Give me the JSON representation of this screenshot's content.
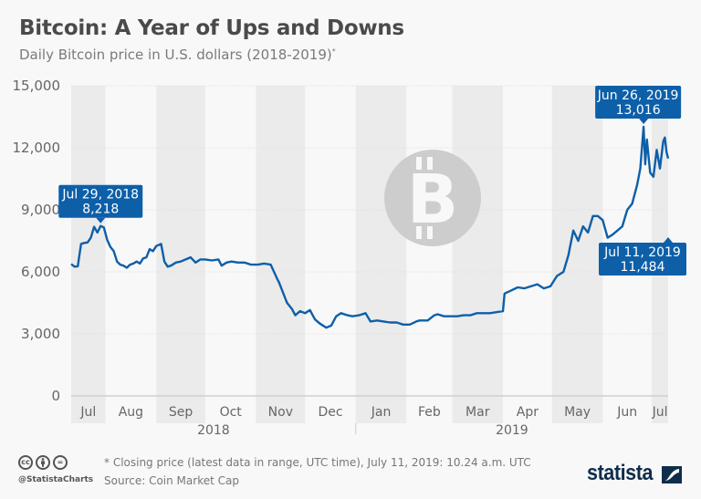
{
  "header": {
    "title": "Bitcoin: A Year of Ups and Downs",
    "subtitle": "Daily Bitcoin price in U.S. dollars (2018-2019)",
    "subtitle_mark": "*"
  },
  "chart_data": {
    "type": "line",
    "title": "Bitcoin: A Year of Ups and Downs",
    "subtitle": "Daily Bitcoin price in U.S. dollars (2018-2019)*",
    "xlabel": "",
    "ylabel": "",
    "ylim": [
      0,
      15000
    ],
    "yticks": [
      0,
      3000,
      6000,
      9000,
      12000,
      15000
    ],
    "ytick_labels": [
      "0",
      "3,000",
      "6,000",
      "9,000",
      "12,000",
      "15,000"
    ],
    "grid": true,
    "x_range": [
      "2018-07-11",
      "2019-07-11"
    ],
    "month_labels": [
      {
        "label": "Jul",
        "start": "2018-07-11",
        "end": "2018-08-01",
        "shaded": true
      },
      {
        "label": "Aug",
        "start": "2018-08-01",
        "end": "2018-09-01",
        "shaded": false
      },
      {
        "label": "Sep",
        "start": "2018-09-01",
        "end": "2018-10-01",
        "shaded": true
      },
      {
        "label": "Oct",
        "start": "2018-10-01",
        "end": "2018-11-01",
        "shaded": false
      },
      {
        "label": "Nov",
        "start": "2018-11-01",
        "end": "2018-12-01",
        "shaded": true
      },
      {
        "label": "Dec",
        "start": "2018-12-01",
        "end": "2019-01-01",
        "shaded": false
      },
      {
        "label": "Jan",
        "start": "2019-01-01",
        "end": "2019-02-01",
        "shaded": true
      },
      {
        "label": "Feb",
        "start": "2019-02-01",
        "end": "2019-03-01",
        "shaded": false
      },
      {
        "label": "Mar",
        "start": "2019-03-01",
        "end": "2019-04-01",
        "shaded": true
      },
      {
        "label": "Apr",
        "start": "2019-04-01",
        "end": "2019-05-01",
        "shaded": false
      },
      {
        "label": "May",
        "start": "2019-05-01",
        "end": "2019-06-01",
        "shaded": true
      },
      {
        "label": "Jun",
        "start": "2019-06-01",
        "end": "2019-07-01",
        "shaded": false
      },
      {
        "label": "Jul",
        "start": "2019-07-01",
        "end": "2019-07-11",
        "shaded": true
      }
    ],
    "year_labels": [
      {
        "label": "2018",
        "start": "2018-07-11",
        "end": "2019-01-01"
      },
      {
        "label": "2019",
        "start": "2019-01-01",
        "end": "2019-07-11"
      }
    ],
    "series": [
      {
        "name": "Bitcoin price (USD)",
        "color": "#0d5fa8",
        "x": [
          "2018-07-11",
          "2018-07-13",
          "2018-07-15",
          "2018-07-17",
          "2018-07-19",
          "2018-07-21",
          "2018-07-23",
          "2018-07-25",
          "2018-07-27",
          "2018-07-29",
          "2018-07-31",
          "2018-08-02",
          "2018-08-04",
          "2018-08-06",
          "2018-08-08",
          "2018-08-10",
          "2018-08-12",
          "2018-08-14",
          "2018-08-16",
          "2018-08-18",
          "2018-08-20",
          "2018-08-22",
          "2018-08-24",
          "2018-08-26",
          "2018-08-28",
          "2018-08-30",
          "2018-09-01",
          "2018-09-04",
          "2018-09-06",
          "2018-09-08",
          "2018-09-10",
          "2018-09-13",
          "2018-09-16",
          "2018-09-19",
          "2018-09-22",
          "2018-09-25",
          "2018-09-28",
          "2018-10-01",
          "2018-10-05",
          "2018-10-09",
          "2018-10-11",
          "2018-10-14",
          "2018-10-17",
          "2018-10-21",
          "2018-10-25",
          "2018-10-29",
          "2018-11-02",
          "2018-11-06",
          "2018-11-10",
          "2018-11-14",
          "2018-11-15",
          "2018-11-19",
          "2018-11-20",
          "2018-11-23",
          "2018-11-25",
          "2018-11-28",
          "2018-12-01",
          "2018-12-04",
          "2018-12-07",
          "2018-12-10",
          "2018-12-14",
          "2018-12-17",
          "2018-12-20",
          "2018-12-23",
          "2018-12-27",
          "2018-12-30",
          "2019-01-03",
          "2019-01-07",
          "2019-01-10",
          "2019-01-14",
          "2019-01-18",
          "2019-01-22",
          "2019-01-26",
          "2019-01-30",
          "2019-02-03",
          "2019-02-07",
          "2019-02-09",
          "2019-02-14",
          "2019-02-18",
          "2019-02-20",
          "2019-02-24",
          "2019-02-28",
          "2019-03-04",
          "2019-03-08",
          "2019-03-12",
          "2019-03-16",
          "2019-03-20",
          "2019-03-24",
          "2019-03-28",
          "2019-04-01",
          "2019-04-02",
          "2019-04-06",
          "2019-04-10",
          "2019-04-14",
          "2019-04-18",
          "2019-04-22",
          "2019-04-26",
          "2019-04-30",
          "2019-05-04",
          "2019-05-08",
          "2019-05-11",
          "2019-05-14",
          "2019-05-17",
          "2019-05-20",
          "2019-05-23",
          "2019-05-26",
          "2019-05-29",
          "2019-06-01",
          "2019-06-04",
          "2019-06-07",
          "2019-06-10",
          "2019-06-13",
          "2019-06-16",
          "2019-06-19",
          "2019-06-22",
          "2019-06-24",
          "2019-06-26",
          "2019-06-27",
          "2019-06-28",
          "2019-06-30",
          "2019-07-02",
          "2019-07-04",
          "2019-07-06",
          "2019-07-08",
          "2019-07-09",
          "2019-07-10",
          "2019-07-11"
        ],
        "y": [
          6380,
          6250,
          6270,
          7350,
          7400,
          7420,
          7650,
          8180,
          7900,
          8218,
          8150,
          7550,
          7200,
          7000,
          6500,
          6350,
          6300,
          6200,
          6350,
          6400,
          6500,
          6400,
          6650,
          6700,
          7100,
          7000,
          7250,
          7350,
          6500,
          6250,
          6300,
          6450,
          6500,
          6600,
          6700,
          6450,
          6600,
          6600,
          6550,
          6600,
          6300,
          6450,
          6500,
          6450,
          6450,
          6350,
          6350,
          6400,
          6350,
          5650,
          5500,
          4700,
          4500,
          4200,
          3900,
          4100,
          4000,
          4150,
          3700,
          3500,
          3300,
          3400,
          3850,
          4000,
          3900,
          3850,
          3900,
          4000,
          3600,
          3650,
          3600,
          3550,
          3550,
          3450,
          3450,
          3600,
          3650,
          3650,
          3900,
          3950,
          3850,
          3850,
          3850,
          3900,
          3900,
          4000,
          4000,
          4000,
          4050,
          4100,
          4950,
          5100,
          5250,
          5200,
          5300,
          5400,
          5200,
          5300,
          5800,
          6000,
          6800,
          8000,
          7500,
          8200,
          7900,
          8700,
          8700,
          8500,
          7650,
          7800,
          8000,
          8200,
          9000,
          9300,
          10200,
          11000,
          13016,
          11200,
          12400,
          10800,
          10600,
          11900,
          11000,
          12300,
          12500,
          11800,
          11484
        ]
      }
    ],
    "annotations": [
      {
        "date_label": "Jul 29, 2018",
        "value_label": "8,218",
        "x": "2018-07-29",
        "y": 8218
      },
      {
        "date_label": "Jun 26, 2019",
        "value_label": "13,016",
        "x": "2019-06-26",
        "y": 13016
      },
      {
        "date_label": "Jul 11, 2019",
        "value_label": "11,484",
        "x": "2019-07-11",
        "y": 11484
      }
    ]
  },
  "footer": {
    "note": "* Closing price (latest data in range, UTC time), July 11, 2019: 10.24 a.m. UTC",
    "source": "Source: Coin Market Cap",
    "handle": "@StatistaCharts",
    "brand": "statista",
    "license_icons": [
      "cc-icon",
      "attribution-icon",
      "no-derivatives-icon"
    ],
    "cc_label": "cc",
    "nd_label": "="
  },
  "colors": {
    "line": "#0d5fa8",
    "callout": "#0d5fa8",
    "band": "#ebebeb",
    "background": "#f8f8f8",
    "bitcoin_logo": "#cccccc",
    "brand": "#0f2d4a"
  }
}
